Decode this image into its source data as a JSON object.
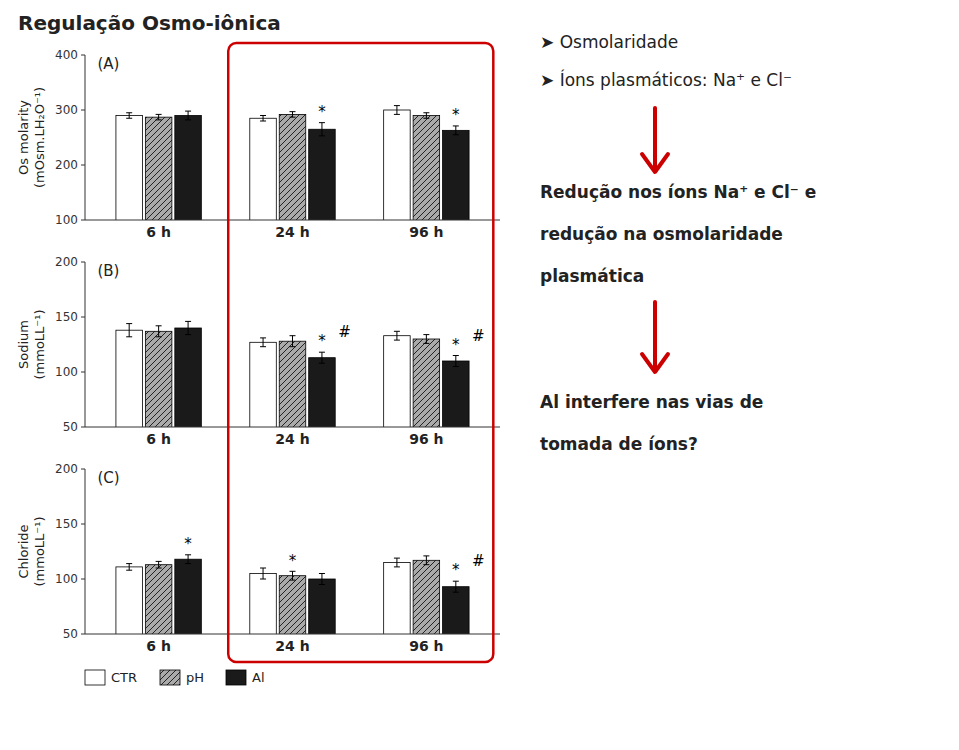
{
  "title": "Regulação Osmo-iônica",
  "color": "#cc0000",
  "annotations": [
    "➤  Osmolaridade",
    "➤  Íons plasmáticos: Na⁺ e Cl⁻",
    "Redução nos íons Na⁺ e Cl⁻ e",
    "redução na osmolaridade",
    "plasmática",
    "Al interfere nas vias de",
    "tomada de íons?"
  ],
  "chart_data": [
    {
      "type": "bar",
      "title": "(A)",
      "ylabel": [
        "Os molarity",
        "(mOsm.LH₂O⁻¹)"
      ],
      "categories": [
        "6 h",
        "24 h",
        "96 h"
      ],
      "series": [
        {
          "name": "CTR",
          "color": "white",
          "values": [
            290,
            285,
            300
          ],
          "errors": [
            5,
            5,
            8
          ]
        },
        {
          "name": "pH",
          "color": "#AAAAAA",
          "values": [
            287,
            292,
            290
          ],
          "errors": [
            5,
            5,
            5
          ]
        },
        {
          "name": "Al",
          "color": "#1a1a1a",
          "values": [
            290,
            265,
            263
          ],
          "errors": [
            8,
            12,
            8
          ]
        }
      ],
      "ylim": [
        100,
        400
      ],
      "yticks": [
        100,
        200,
        300,
        400
      ],
      "grid": false,
      "annotations": [
        {
          "text": "*",
          "category": "24 h",
          "series": "Al"
        },
        {
          "text": "*",
          "category": "96 h",
          "series": "Al"
        }
      ]
    },
    {
      "type": "bar",
      "title": "(B)",
      "ylabel": [
        "Sodium",
        "(mmoLL⁻¹)"
      ],
      "categories": [
        "6 h",
        "24 h",
        "96 h"
      ],
      "series": [
        {
          "name": "CTR",
          "color": "white",
          "values": [
            138,
            127,
            133
          ],
          "errors": [
            6,
            4,
            4
          ]
        },
        {
          "name": "pH",
          "color": "#AAAAAA",
          "values": [
            137,
            128,
            130
          ],
          "errors": [
            5,
            5,
            4
          ]
        },
        {
          "name": "Al",
          "color": "#1a1a1a",
          "values": [
            140,
            113,
            110
          ],
          "errors": [
            6,
            5,
            5
          ]
        }
      ],
      "ylim": [
        50,
        200
      ],
      "yticks": [
        50,
        100,
        150,
        200
      ],
      "grid": false,
      "annotations": [
        {
          "text": "*",
          "category": "24 h",
          "series": "Al"
        },
        {
          "text": "*",
          "category": "96 h",
          "series": "Al"
        },
        {
          "text": "#",
          "category": "24 h",
          "series": "Al"
        },
        {
          "text": "#",
          "category": "96 h",
          "series": "Al"
        }
      ]
    },
    {
      "type": "bar",
      "title": "(C)",
      "ylabel": [
        "Chloride",
        "(mmoLL⁻¹)"
      ],
      "categories": [
        "6 h",
        "24 h",
        "96 h"
      ],
      "series": [
        {
          "name": "CTR",
          "color": "white",
          "values": [
            111,
            105,
            115
          ],
          "errors": [
            3,
            5,
            4
          ]
        },
        {
          "name": "pH",
          "color": "#AAAAAA",
          "values": [
            113,
            103,
            117
          ],
          "errors": [
            3,
            4,
            4
          ]
        },
        {
          "name": "Al",
          "color": "#1a1a1a",
          "values": [
            118,
            100,
            93
          ],
          "errors": [
            4,
            5,
            5
          ]
        }
      ],
      "ylim": [
        50,
        200
      ],
      "yticks": [
        50,
        100,
        150,
        200
      ],
      "grid": false,
      "legend": "bottom",
      "annotations": [
        {
          "text": "*",
          "category": "6 h",
          "series": "Al"
        },
        {
          "text": "*",
          "category": "24 h",
          "series": "pH"
        },
        {
          "text": "*",
          "category": "96 h",
          "series": "Al"
        },
        {
          "text": "#",
          "category": "96 h",
          "series": "Al"
        }
      ]
    }
  ]
}
